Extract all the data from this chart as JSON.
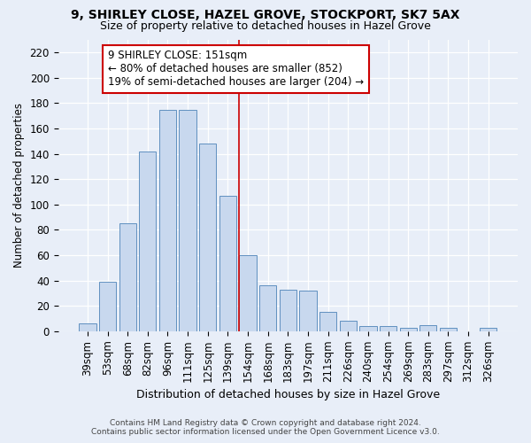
{
  "title": "9, SHIRLEY CLOSE, HAZEL GROVE, STOCKPORT, SK7 5AX",
  "subtitle": "Size of property relative to detached houses in Hazel Grove",
  "xlabel": "Distribution of detached houses by size in Hazel Grove",
  "ylabel": "Number of detached properties",
  "categories": [
    "39sqm",
    "53sqm",
    "68sqm",
    "82sqm",
    "96sqm",
    "111sqm",
    "125sqm",
    "139sqm",
    "154sqm",
    "168sqm",
    "183sqm",
    "197sqm",
    "211sqm",
    "226sqm",
    "240sqm",
    "254sqm",
    "269sqm",
    "283sqm",
    "297sqm",
    "312sqm",
    "326sqm"
  ],
  "values": [
    6,
    39,
    85,
    142,
    175,
    175,
    148,
    107,
    60,
    36,
    33,
    32,
    15,
    8,
    4,
    4,
    3,
    5,
    3,
    0,
    3
  ],
  "bar_color": "#c8d8ee",
  "bar_edge_color": "#6090c0",
  "vline_index": 8,
  "vline_color": "#cc0000",
  "annotation_box_edge_color": "#cc0000",
  "annotation_box_face_color": "#ffffff",
  "property_size_label": "9 SHIRLEY CLOSE: 151sqm",
  "annotation_line1": "← 80% of detached houses are smaller (852)",
  "annotation_line2": "19% of semi-detached houses are larger (204) →",
  "ylim": [
    0,
    230
  ],
  "yticks": [
    0,
    20,
    40,
    60,
    80,
    100,
    120,
    140,
    160,
    180,
    200,
    220
  ],
  "footer_line1": "Contains HM Land Registry data © Crown copyright and database right 2024.",
  "footer_line2": "Contains public sector information licensed under the Open Government Licence v3.0.",
  "background_color": "#e8eef8"
}
